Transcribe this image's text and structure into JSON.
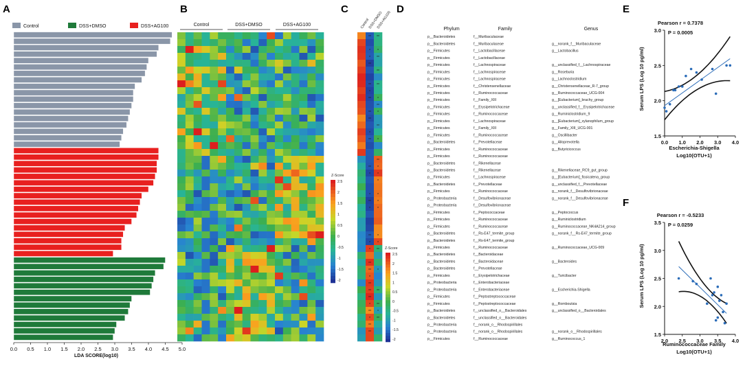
{
  "panel_letters": {
    "A": "A",
    "B": "B",
    "C": "C",
    "D": "D",
    "E": "E",
    "F": "F"
  },
  "colors": {
    "control": "#8a96a8",
    "dss_dmso": "#1f7a3a",
    "dss_ag100": "#e8201f"
  },
  "chart_data": [
    {
      "panel": "A",
      "type": "bar",
      "orientation": "horizontal",
      "xlabel": "LDA SCORE(log10)",
      "xlim": [
        0,
        5.0
      ],
      "xticks": [
        "0.0",
        "0.5",
        "1.0",
        "1.5",
        "2.0",
        "2.5",
        "3.0",
        "3.5",
        "4.0",
        "4.5",
        "5.0"
      ],
      "legend": [
        "Control",
        "DSS+DMSO",
        "DSS+AG100"
      ],
      "series": [
        {
          "name": "Control",
          "values": [
            4.7,
            4.65,
            4.3,
            4.25,
            4.0,
            3.95,
            3.9,
            3.8,
            3.6,
            3.55,
            3.55,
            3.5,
            3.45,
            3.4,
            3.35,
            3.25,
            3.2,
            3.15
          ]
        },
        {
          "name": "DSS+AG100",
          "values": [
            4.3,
            4.3,
            4.25,
            4.25,
            4.2,
            4.15,
            4.0,
            3.8,
            3.75,
            3.7,
            3.65,
            3.5,
            3.3,
            3.25,
            3.2,
            3.2,
            2.95
          ]
        },
        {
          "name": "DSS+DMSO",
          "values": [
            4.5,
            4.45,
            4.2,
            4.15,
            4.1,
            4.05,
            3.5,
            3.45,
            3.4,
            3.3,
            3.05,
            3.0,
            2.95
          ]
        }
      ]
    },
    {
      "panel": "B",
      "type": "heatmap",
      "groups": [
        "Control",
        "DSS+DMSO",
        "DSS+AG100"
      ],
      "rows": 45,
      "columns": 18,
      "legend_title": "Z-Score",
      "legend_ticks": [
        "2.5",
        "2",
        "1.5",
        "1",
        "0.5",
        "0",
        "-0.5",
        "-1",
        "-1.5",
        "-2"
      ]
    },
    {
      "panel": "C",
      "type": "heatmap",
      "columns": [
        "Control",
        "DSS+DMSO",
        "DSS+AG100"
      ],
      "rows": 45,
      "legend_title": "Z-Score",
      "legend_ticks": [
        "2.5",
        "2",
        "1.5",
        "1",
        "0.5",
        "0",
        "-0.5",
        "-1",
        "-1.5",
        "-2"
      ]
    },
    {
      "panel": "E",
      "type": "scatter",
      "title": "Pearson r = 0.7378",
      "pvalue": "P = 0.0005",
      "xlabel": "Escherichia-Shigella",
      "xlabel2": "Log10(OTU+1)",
      "ylabel": "Serum LPS (Log 10 pg/ml)",
      "xlim": [
        0.0,
        4.0
      ],
      "ylim": [
        1.5,
        3.0
      ],
      "xticks": [
        "0.0",
        "1.0",
        "2.0",
        "3.0",
        "4.0"
      ],
      "yticks": [
        "1.5",
        "2.0",
        "2.5",
        "3.0"
      ],
      "points": [
        [
          0.0,
          1.9
        ],
        [
          0.1,
          1.85
        ],
        [
          0.3,
          1.95
        ],
        [
          0.5,
          2.15
        ],
        [
          0.8,
          2.2
        ],
        [
          1.2,
          2.35
        ],
        [
          1.5,
          2.45
        ],
        [
          1.8,
          2.4
        ],
        [
          2.1,
          2.3
        ],
        [
          2.7,
          2.45
        ],
        [
          2.9,
          2.1
        ],
        [
          3.5,
          2.5
        ],
        [
          3.7,
          2.5
        ],
        [
          1.0,
          2.2
        ],
        [
          0.6,
          2.15
        ]
      ],
      "fit": {
        "slope": 0.18,
        "intercept": 1.93
      }
    },
    {
      "panel": "F",
      "type": "scatter",
      "title": "Pearson r = -0.5233",
      "pvalue": "P = 0.0259",
      "xlabel": "Ruminococcaceae Family",
      "xlabel2": "Log10(OTU+1)",
      "ylabel": "Serum LPS (Log 10 pg/ml)",
      "xlim": [
        2.0,
        4.0
      ],
      "ylim": [
        1.5,
        3.5
      ],
      "xticks": [
        "2.0",
        "2.5",
        "3.0",
        "3.5",
        "4.0"
      ],
      "yticks": [
        "1.5",
        "2.0",
        "2.5",
        "3.0",
        "3.5"
      ],
      "points": [
        [
          2.4,
          2.5
        ],
        [
          2.8,
          2.45
        ],
        [
          2.9,
          2.4
        ],
        [
          3.2,
          2.05
        ],
        [
          3.3,
          2.5
        ],
        [
          3.35,
          2.2
        ],
        [
          3.4,
          2.25
        ],
        [
          3.45,
          1.75
        ],
        [
          3.5,
          2.35
        ],
        [
          3.55,
          2.1
        ],
        [
          3.6,
          2.2
        ],
        [
          3.65,
          1.9
        ],
        [
          3.7,
          1.7
        ],
        [
          3.75,
          2.05
        ],
        [
          3.5,
          1.8
        ]
      ],
      "fit": {
        "slope": -0.62,
        "intercept": 4.2
      }
    }
  ],
  "table_D": {
    "headers": [
      "Phylum",
      "Family",
      "Genus"
    ],
    "rows": [
      [
        "p__Bacteroidetes",
        "f__Muribaculaceae",
        ""
      ],
      [
        "p__Bacteroidetes",
        "f__Muribaculaceae",
        "g__norank_f__Muribaculaceae"
      ],
      [
        "p__Firmicutes",
        "f__Lactobacillaceae",
        "g__Lactobacillus"
      ],
      [
        "p__Firmicutes",
        "f__Lactobacillaceae",
        ""
      ],
      [
        "p__Firmicutes",
        "f__Lachnospiraceae",
        "g__unclassified_f__Lachnospiraceae"
      ],
      [
        "p__Firmicutes",
        "f__Lachnospiraceae",
        "g__Roseburia"
      ],
      [
        "p__Firmicutes",
        "f__Lachnospiraceae",
        "g__Lachnoclostridium"
      ],
      [
        "p__Firmicutes",
        "f__Christensenellaceae",
        "g__Christensenellaceae_R-7_group"
      ],
      [
        "p__Firmicutes",
        "f__Ruminococcaceae",
        "g__Ruminococcaceae_UCG-004"
      ],
      [
        "p__Firmicutes",
        "f__Family_XIII",
        "g__[Eubacterium]_brachy_group"
      ],
      [
        "p__Firmicutes",
        "f__Erysipelotrichaceae",
        "g__unclassified_f__Erysipelotrichaceae"
      ],
      [
        "p__Firmicutes",
        "f__Ruminococcaceae",
        "g__Ruminiclostridium_9"
      ],
      [
        "p__Firmicutes",
        "f__Lachnospiraceae",
        "g__[Eubacterium]_xylanophilum_group"
      ],
      [
        "p__Firmicutes",
        "f__Family_XIII",
        "g__Family_XIII_UCG-001"
      ],
      [
        "p__Firmicutes",
        "f__Ruminococcaceae",
        "g__Oscillibacter"
      ],
      [
        "p__Bacteroidetes",
        "f__Prevotellaceae",
        "g__Alloprevotella"
      ],
      [
        "p__Firmicutes",
        "f__Ruminococcaceae",
        "g__Butyricicoccus"
      ],
      [
        "p__Firmicutes",
        "f__Ruminococcaceae",
        ""
      ],
      [
        "p__Bacteroidetes",
        "f__Rikenellaceae",
        ""
      ],
      [
        "p__Bacteroidetes",
        "f__Rikenellaceae",
        "g__Rikenellaceae_RC9_gut_group"
      ],
      [
        "p__Firmicutes",
        "f__Lachnospiraceae",
        "g__[Eubacterium]_fissicatena_group"
      ],
      [
        "p__Bacteroidetes",
        "f__Prevotellaceae",
        "g__unclassified_f__Prevotellaceae"
      ],
      [
        "p__Firmicutes",
        "f__Ruminococcaceae",
        "g__norank_f__Desulfovibrionaceae"
      ],
      [
        "p__Proteobacteria",
        "f__Desulfovibrionaceae",
        "g__norank_f__Desulfovibrionaceae"
      ],
      [
        "p__Proteobacteria",
        "f__Desulfovibrionaceae",
        ""
      ],
      [
        "p__Firmicutes",
        "f__Peptococcaceae",
        "g__Peptococcus"
      ],
      [
        "p__Firmicutes",
        "f__Ruminococcaceae",
        "g__Ruminiclostridium"
      ],
      [
        "p__Firmicutes",
        "f__Ruminococcaceae",
        "g__Ruminococcaceae_NK4A214_group"
      ],
      [
        "p__Bacteroidetes",
        "f__Rs-E47_termite_group",
        "g__norank_f__Rs-E47_termite_group"
      ],
      [
        "p__Bacteroidetes",
        "f__Rs-E47_termite_group",
        ""
      ],
      [
        "p__Firmicutes",
        "f__Ruminococcaceae",
        "g__Ruminococcaceae_UCG-009"
      ],
      [
        "p__Bacteroidetes",
        "f__Bacteroidaceae",
        ""
      ],
      [
        "p__Bacteroidetes",
        "f__Bacteroidaceae",
        "g__Bacteroides"
      ],
      [
        "p__Bacteroidetes",
        "f__Prevotellaceae",
        ""
      ],
      [
        "p__Firmicutes",
        "f__Erysipelotrichaceae",
        "g__Turicibacter"
      ],
      [
        "p__Proteobacteria",
        "f__Enterobacteriaceae",
        ""
      ],
      [
        "p__Proteobacteria",
        "f__Enterobacteriaceae",
        "g__Escherichia-Shigella"
      ],
      [
        "p__Firmicutes",
        "f__Peptostreptococcaceae",
        ""
      ],
      [
        "p__Firmicutes",
        "f__Peptostreptococcaceae",
        "g__Romboutsia"
      ],
      [
        "p__Bacteroidetes",
        "f__unclassified_o__Bacteroidales",
        "g__unclassified_o__Bacteroidales"
      ],
      [
        "p__Bacteroidetes",
        "f__unclassified_o__Bacteroidales",
        ""
      ],
      [
        "p__Proteobacteria",
        "f__norank_o__Rhodospirillales",
        ""
      ],
      [
        "p__Proteobacteria",
        "f__norank_o__Rhodospirillales",
        "g__norank_o__Rhodospirillales"
      ],
      [
        "p__Firmicutes",
        "f__Ruminococcaceae",
        "g__Ruminococcus_1"
      ]
    ]
  }
}
